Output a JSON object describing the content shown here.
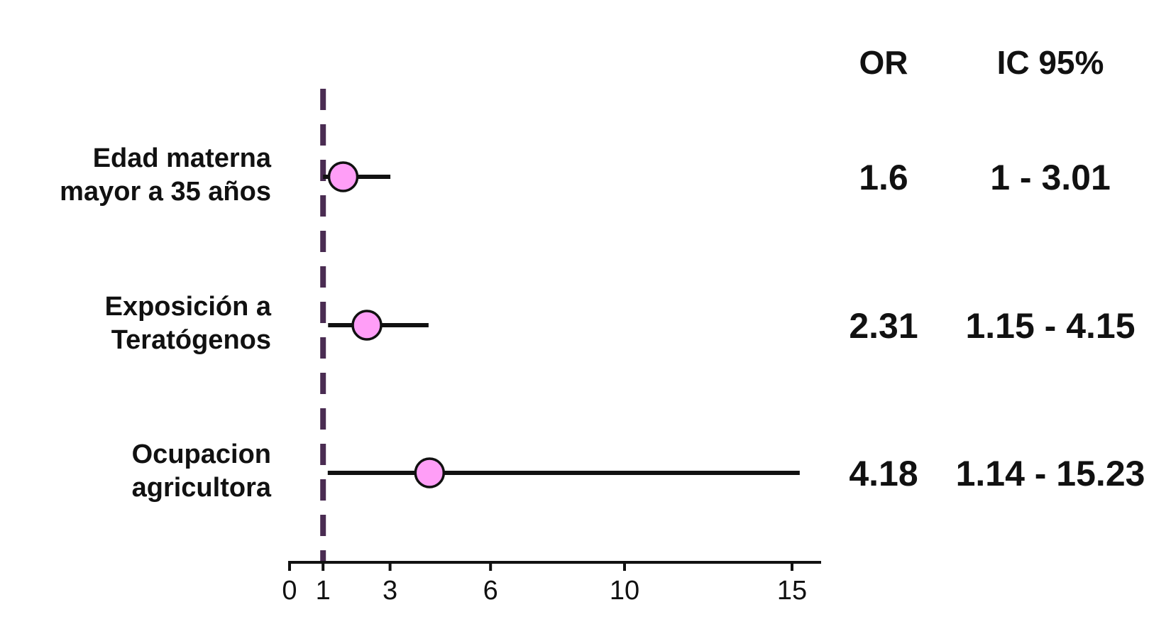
{
  "colors": {
    "reference_line": "#4a2c52",
    "point_fill": "#ff9ef7",
    "point_stroke": "#111111",
    "ci_line": "#111111",
    "axis": "#111111"
  },
  "headers": {
    "or": "OR",
    "ci": "IC 95%"
  },
  "chart_data": {
    "type": "forest",
    "title": "",
    "xlabel": "",
    "ylabel": "",
    "xlim": [
      0,
      16
    ],
    "reference_value": 1,
    "x_ticks": [
      0,
      1,
      3,
      6,
      10,
      15
    ],
    "x_tick_labels": [
      "0",
      "1",
      "3",
      "6",
      "10",
      "15"
    ],
    "rows": [
      {
        "label_line1": "Edad materna",
        "label_line2": "mayor a 35 años",
        "or": 1.6,
        "ci_low": 1,
        "ci_high": 3.01,
        "or_text": "1.6",
        "ci_text": "1 - 3.01"
      },
      {
        "label_line1": "Exposición a",
        "label_line2": "Teratógenos",
        "or": 2.31,
        "ci_low": 1.15,
        "ci_high": 4.15,
        "or_text": "2.31",
        "ci_text": "1.15 - 4.15"
      },
      {
        "label_line1": "Ocupacion",
        "label_line2": "agricultora",
        "or": 4.18,
        "ci_low": 1.14,
        "ci_high": 15.23,
        "or_text": "4.18",
        "ci_text": "1.14 - 15.23"
      }
    ]
  }
}
